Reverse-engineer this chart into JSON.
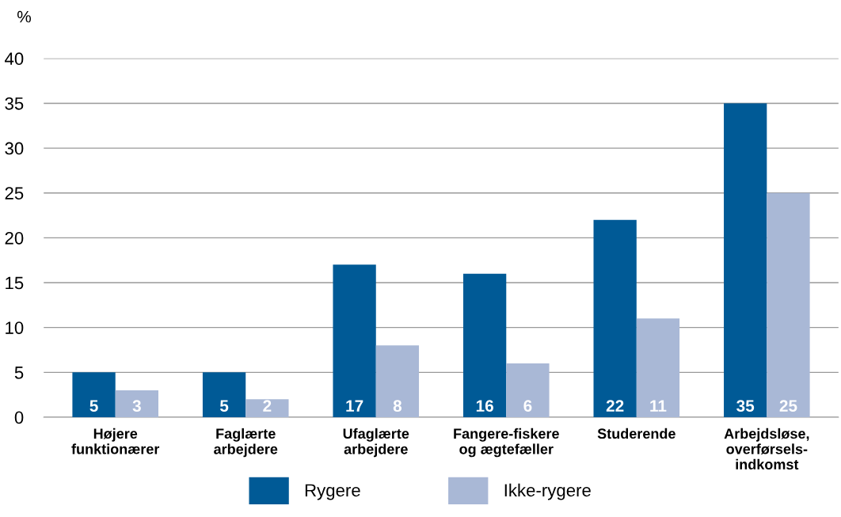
{
  "chart_data": {
    "type": "bar",
    "ylabel": "%",
    "categories": [
      "Højere\nfunktionærer",
      "Faglærte\narbejdere",
      "Ufaglærte\narbejdere",
      "Fangere-fiskere\nog ægtefæller",
      "Studerende",
      "Arbejdsløse,\noverførsels-\nindkomst"
    ],
    "series": [
      {
        "name": "Rygere",
        "color": "#005a96",
        "values": [
          5,
          5,
          17,
          16,
          22,
          35
        ]
      },
      {
        "name": "Ikke-rygere",
        "color": "#a9b8d6",
        "values": [
          3,
          2,
          8,
          6,
          11,
          25
        ]
      }
    ],
    "data_labels": true,
    "ylim": [
      0,
      40
    ],
    "yticks": [
      0,
      5,
      10,
      15,
      20,
      25,
      30,
      35,
      40
    ],
    "grid": "y",
    "legend": "bottom"
  }
}
